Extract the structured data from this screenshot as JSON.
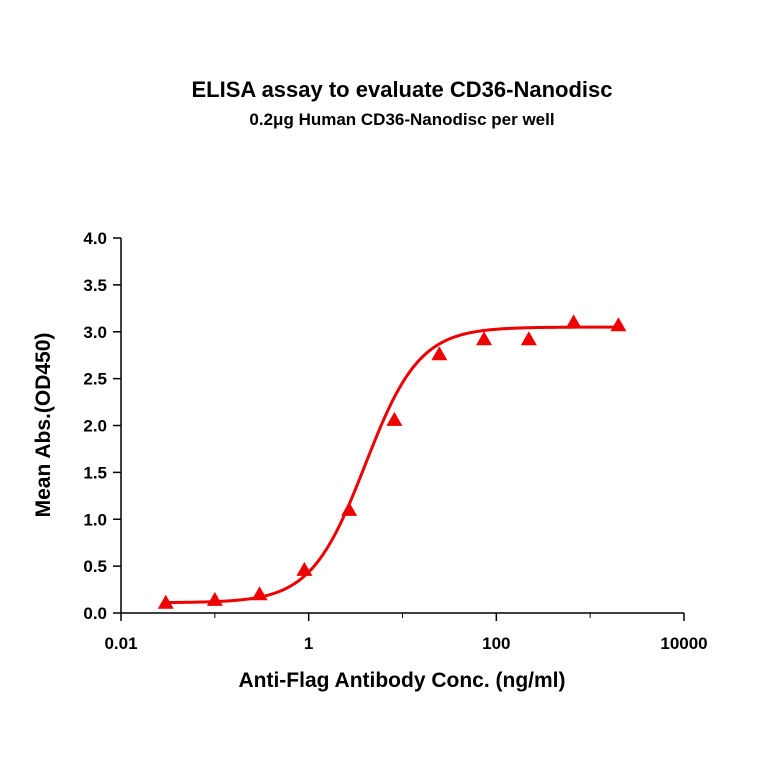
{
  "chart_data": {
    "type": "scatter",
    "title": "ELISA assay to evaluate CD36-Nanodisc",
    "subtitle": "0.2μg Human CD36-Nanodisc per well",
    "xlabel": "Anti-Flag Antibody Conc. (ng/ml)",
    "ylabel": "Mean Abs.(OD450)",
    "xscale": "log",
    "xlim": [
      0.01,
      10000
    ],
    "ylim": [
      0,
      4.0
    ],
    "x_ticks": [
      0.01,
      1,
      100,
      10000
    ],
    "x_tick_labels": [
      "0.01",
      "1",
      "100",
      "10000"
    ],
    "y_ticks": [
      0,
      0.5,
      1.0,
      1.5,
      2.0,
      2.5,
      3.0,
      3.5,
      4.0
    ],
    "y_tick_labels": [
      "0.0",
      "0.5",
      "1.0",
      "1.5",
      "2.0",
      "2.5",
      "3.0",
      "3.5",
      "4.0"
    ],
    "grid": false,
    "legend": "none",
    "series": [
      {
        "marker": "triangle",
        "color": "#ee0000",
        "x": [
          0.03,
          0.1,
          0.3,
          0.9,
          2.7,
          8.2,
          24.7,
          74,
          222,
          667,
          2000
        ],
        "y": [
          0.11,
          0.14,
          0.2,
          0.46,
          1.1,
          2.06,
          2.76,
          2.92,
          2.92,
          3.1,
          3.07
        ]
      }
    ],
    "fit_curve": {
      "color": "#ee0000",
      "model": "4PL",
      "bottom": 0.11,
      "top": 3.05,
      "ec50": 4.0,
      "hill": 1.5,
      "x_range": [
        0.03,
        2000
      ]
    }
  }
}
